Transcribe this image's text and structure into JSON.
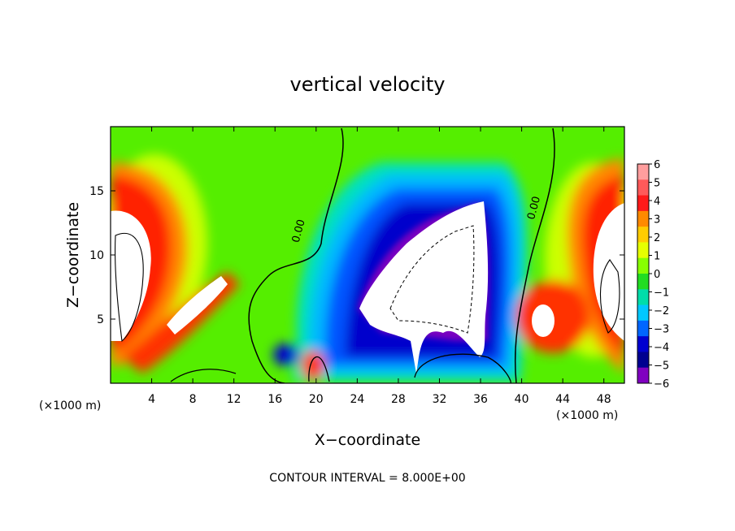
{
  "chart_data": {
    "type": "heatmap",
    "title": "vertical velocity",
    "xlabel": "X−coordinate",
    "ylabel": "Z−coordinate",
    "x_unit_left": "(×1000 m)",
    "x_unit_right": "(×1000 m)",
    "footer": "CONTOUR INTERVAL = 8.000E+00",
    "xlim": [
      0,
      50
    ],
    "ylim": [
      0,
      20
    ],
    "x_ticks": [
      4,
      8,
      12,
      16,
      20,
      24,
      28,
      32,
      36,
      40,
      44,
      48
    ],
    "x_tick_labels": [
      "4",
      "8",
      "12",
      "16",
      "20",
      "24",
      "28",
      "32",
      "36",
      "40",
      "44",
      "48"
    ],
    "y_ticks": [
      5,
      10,
      15
    ],
    "y_tick_labels": [
      "5",
      "10",
      "15"
    ],
    "contour_labels": [
      {
        "text": "0.00",
        "x": 18.6,
        "y": 11.8
      },
      {
        "text": "0.00",
        "x": 41.5,
        "y": 13.6
      }
    ],
    "colorbar": {
      "levels": [
        6,
        5,
        4,
        3,
        2,
        1,
        0,
        -1,
        -2,
        -3,
        -4,
        -5,
        -6
      ],
      "labels": [
        "6",
        "5",
        "4",
        "3",
        "2",
        "1",
        "0",
        "−1",
        "−2",
        "−3",
        "−4",
        "−5",
        "−6"
      ],
      "colors": [
        "#ff9e9e",
        "#ff5a5a",
        "#ff1a1a",
        "#ff8a00",
        "#ffcc00",
        "#e6ff00",
        "#88ff00",
        "#22dd22",
        "#00ddaa",
        "#00c8ff",
        "#0066ff",
        "#0000d0",
        "#000090",
        "#8000c0"
      ]
    },
    "features": [
      {
        "name": "left updraft core",
        "x": 1.5,
        "z": 10.5,
        "sign": "positive"
      },
      {
        "name": "left sloping updraft",
        "x": 7.5,
        "z": 7.0,
        "sign": "positive"
      },
      {
        "name": "central downdraft",
        "x": 31.5,
        "z": 8.5,
        "sign": "negative"
      },
      {
        "name": "right updraft core",
        "x": 48.5,
        "z": 9.0,
        "sign": "positive"
      },
      {
        "name": "right lower updraft",
        "x": 42.5,
        "z": 5.5,
        "sign": "positive"
      }
    ]
  }
}
